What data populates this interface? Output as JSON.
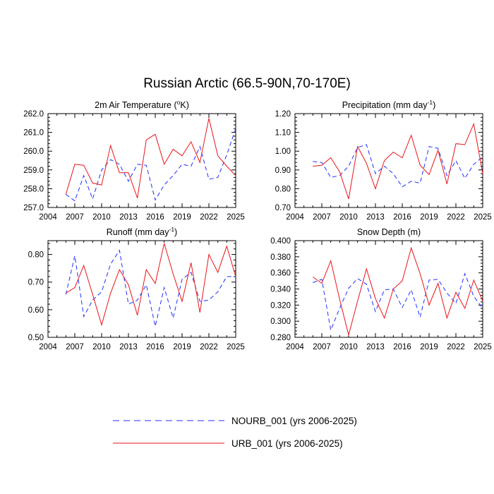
{
  "title": "Russian Arctic (66.5-90N,70-170E)",
  "series_meta": [
    {
      "name": "NOURB_001 (yrs 2006-2025)",
      "color": "#1f2fff",
      "dash": true
    },
    {
      "name": "URB_001 (yrs 2006-2025)",
      "color": "#e8141a",
      "dash": false
    }
  ],
  "chart_data": [
    {
      "type": "line",
      "title": "2m Air Temperature (°K)",
      "title_parts": [
        "2m Air Temperature (",
        "o",
        "K)"
      ],
      "xlim": [
        2004,
        2025
      ],
      "ylim": [
        257.0,
        262.0
      ],
      "xticks": [
        2004,
        2007,
        2010,
        2013,
        2016,
        2019,
        2022,
        2025
      ],
      "yticks": [
        "257.0",
        "258.0",
        "259.0",
        "260.0",
        "261.0",
        "262.0"
      ],
      "x": [
        2006,
        2007,
        2008,
        2009,
        2010,
        2011,
        2012,
        2013,
        2014,
        2015,
        2016,
        2017,
        2018,
        2019,
        2020,
        2021,
        2022,
        2023,
        2024,
        2025
      ],
      "series": [
        {
          "name": "NOURB_001",
          "values": [
            257.7,
            257.35,
            258.7,
            257.45,
            259.0,
            259.55,
            259.3,
            258.4,
            259.3,
            259.25,
            257.4,
            258.2,
            258.7,
            259.3,
            259.2,
            260.25,
            258.5,
            258.6,
            259.8,
            261.2
          ]
        },
        {
          "name": "URB_001",
          "values": [
            257.7,
            259.3,
            259.25,
            258.3,
            258.2,
            260.3,
            258.85,
            258.85,
            257.5,
            260.6,
            260.9,
            259.3,
            260.1,
            259.75,
            260.5,
            259.4,
            261.75,
            259.75,
            259.2,
            258.7
          ]
        }
      ]
    },
    {
      "type": "line",
      "title": "Precipitation (mm day-1)",
      "title_parts": [
        "Precipitation (mm day",
        "-1",
        ")"
      ],
      "xlim": [
        2004,
        2025
      ],
      "ylim": [
        0.7,
        1.2
      ],
      "xticks": [
        2004,
        2007,
        2010,
        2013,
        2016,
        2019,
        2022,
        2025
      ],
      "yticks": [
        "0.70",
        "0.80",
        "0.90",
        "1.00",
        "1.10",
        "1.20"
      ],
      "x": [
        2006,
        2007,
        2008,
        2009,
        2010,
        2011,
        2012,
        2013,
        2014,
        2015,
        2016,
        2017,
        2018,
        2019,
        2020,
        2021,
        2022,
        2023,
        2024,
        2025
      ],
      "series": [
        {
          "name": "NOURB_001",
          "values": [
            0.945,
            0.94,
            0.86,
            0.87,
            0.92,
            1.02,
            1.035,
            0.88,
            0.92,
            0.88,
            0.81,
            0.84,
            0.83,
            1.025,
            1.015,
            0.87,
            0.95,
            0.855,
            0.93,
            0.97
          ]
        },
        {
          "name": "URB_001",
          "values": [
            0.92,
            0.925,
            0.965,
            0.89,
            0.745,
            1.025,
            0.935,
            0.8,
            0.95,
            0.995,
            0.965,
            1.085,
            0.925,
            0.875,
            1.005,
            0.825,
            1.04,
            1.035,
            1.145,
            0.88
          ]
        }
      ]
    },
    {
      "type": "line",
      "title": "Runoff (mm day-1)",
      "title_parts": [
        "Runoff (mm day",
        "-1",
        ")"
      ],
      "xlim": [
        2004,
        2025
      ],
      "ylim": [
        0.5,
        0.85
      ],
      "xticks": [
        2004,
        2007,
        2010,
        2013,
        2016,
        2019,
        2022,
        2025
      ],
      "yticks": [
        "0.50",
        "0.60",
        "0.70",
        "0.80"
      ],
      "x": [
        2006,
        2007,
        2008,
        2009,
        2010,
        2011,
        2012,
        2013,
        2014,
        2015,
        2016,
        2017,
        2018,
        2019,
        2020,
        2021,
        2022,
        2023,
        2024,
        2025
      ],
      "series": [
        {
          "name": "NOURB_001",
          "values": [
            0.655,
            0.795,
            0.575,
            0.635,
            0.665,
            0.765,
            0.815,
            0.62,
            0.635,
            0.69,
            0.54,
            0.68,
            0.57,
            0.71,
            0.735,
            0.63,
            0.635,
            0.665,
            0.72,
            0.72
          ]
        },
        {
          "name": "URB_001",
          "values": [
            0.66,
            0.68,
            0.76,
            0.655,
            0.545,
            0.66,
            0.745,
            0.69,
            0.58,
            0.745,
            0.695,
            0.84,
            0.73,
            0.63,
            0.77,
            0.59,
            0.8,
            0.735,
            0.83,
            0.72
          ]
        }
      ]
    },
    {
      "type": "line",
      "title": "Snow Depth (m)",
      "title_parts": [
        "Snow Depth (m)",
        "",
        ""
      ],
      "xlim": [
        2004,
        2025
      ],
      "ylim": [
        0.28,
        0.4
      ],
      "xticks": [
        2004,
        2007,
        2010,
        2013,
        2016,
        2019,
        2022,
        2025
      ],
      "yticks": [
        "0.280",
        "0.300",
        "0.320",
        "0.340",
        "0.360",
        "0.380",
        "0.400"
      ],
      "x": [
        2006,
        2007,
        2008,
        2009,
        2010,
        2011,
        2012,
        2013,
        2014,
        2015,
        2016,
        2017,
        2018,
        2019,
        2020,
        2021,
        2022,
        2023,
        2024,
        2025
      ],
      "series": [
        {
          "name": "NOURB_001",
          "values": [
            0.348,
            0.352,
            0.289,
            0.316,
            0.341,
            0.353,
            0.346,
            0.312,
            0.339,
            0.34,
            0.317,
            0.339,
            0.305,
            0.351,
            0.352,
            0.335,
            0.322,
            0.359,
            0.331,
            0.316
          ]
        },
        {
          "name": "URB_001",
          "values": [
            0.355,
            0.347,
            0.375,
            0.327,
            0.283,
            0.325,
            0.365,
            0.328,
            0.304,
            0.34,
            0.35,
            0.391,
            0.359,
            0.32,
            0.347,
            0.304,
            0.336,
            0.316,
            0.351,
            0.325
          ]
        }
      ]
    }
  ]
}
